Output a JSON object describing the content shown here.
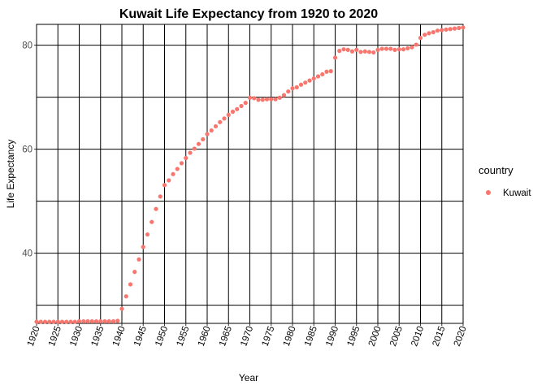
{
  "chart_data": {
    "type": "scatter",
    "title": "Kuwait Life Expectancy from 1920 to 2020",
    "xlabel": "Year",
    "ylabel": "Life Expectancy",
    "xlim": [
      1920,
      2020
    ],
    "ylim": [
      26.5,
      84
    ],
    "x_ticks": [
      "1920",
      "1925",
      "1930",
      "1935",
      "1940",
      "1945",
      "1950",
      "1955",
      "1960",
      "1965",
      "1970",
      "1975",
      "1980",
      "1985",
      "1990",
      "1995",
      "2000",
      "2005",
      "2010",
      "2015",
      "2020"
    ],
    "y_ticks": [
      40,
      60,
      80
    ],
    "y_gridlines": [
      30,
      40,
      50,
      60,
      70,
      80
    ],
    "grid": true,
    "legend": {
      "title": "country",
      "placement": "right",
      "entries": [
        "Kuwait"
      ]
    },
    "series": [
      {
        "name": "Kuwait",
        "color": "#F8766D",
        "x": [
          1920,
          1921,
          1922,
          1923,
          1924,
          1925,
          1926,
          1927,
          1928,
          1929,
          1930,
          1931,
          1932,
          1933,
          1934,
          1935,
          1936,
          1937,
          1938,
          1939,
          1940,
          1941,
          1942,
          1943,
          1944,
          1945,
          1946,
          1947,
          1948,
          1949,
          1950,
          1951,
          1952,
          1953,
          1954,
          1955,
          1956,
          1957,
          1958,
          1959,
          1960,
          1961,
          1962,
          1963,
          1964,
          1965,
          1966,
          1967,
          1968,
          1969,
          1970,
          1971,
          1972,
          1973,
          1974,
          1975,
          1976,
          1977,
          1978,
          1979,
          1980,
          1981,
          1982,
          1983,
          1984,
          1985,
          1986,
          1987,
          1988,
          1989,
          1990,
          1991,
          1992,
          1993,
          1994,
          1995,
          1996,
          1997,
          1998,
          1999,
          2000,
          2001,
          2002,
          2003,
          2004,
          2005,
          2006,
          2007,
          2008,
          2009,
          2010,
          2011,
          2012,
          2013,
          2014,
          2015,
          2016,
          2017,
          2018,
          2019,
          2020
        ],
        "y": [
          26.8,
          26.8,
          26.8,
          26.8,
          26.8,
          26.8,
          26.8,
          26.8,
          26.8,
          26.8,
          26.9,
          26.9,
          26.9,
          26.9,
          26.9,
          26.9,
          26.9,
          26.9,
          26.9,
          27.0,
          29.3,
          31.7,
          34.0,
          36.4,
          38.8,
          41.2,
          43.6,
          46.0,
          48.5,
          50.9,
          53.1,
          54.0,
          55.2,
          56.2,
          57.3,
          58.3,
          59.3,
          60.1,
          61.0,
          61.9,
          62.9,
          63.6,
          64.4,
          65.2,
          65.9,
          66.6,
          67.2,
          67.7,
          68.3,
          68.9,
          69.9,
          69.8,
          69.5,
          69.5,
          69.6,
          69.6,
          69.6,
          69.9,
          70.4,
          71.1,
          71.7,
          71.9,
          72.4,
          72.8,
          73.2,
          73.6,
          74.0,
          74.4,
          74.9,
          75.0,
          77.6,
          78.9,
          79.2,
          79.1,
          78.8,
          79.1,
          78.7,
          78.8,
          78.7,
          78.6,
          79.1,
          79.3,
          79.3,
          79.3,
          79.1,
          79.2,
          79.2,
          79.4,
          79.6,
          80.1,
          81.4,
          82.0,
          82.3,
          82.5,
          82.8,
          82.9,
          83.0,
          83.1,
          83.2,
          83.3,
          83.4
        ]
      }
    ]
  }
}
